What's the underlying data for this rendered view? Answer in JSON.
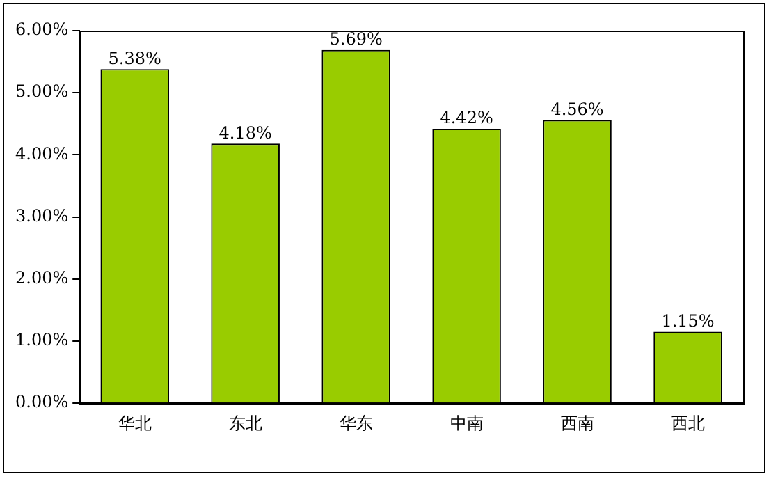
{
  "chart_data": {
    "type": "bar",
    "categories": [
      "华北",
      "东北",
      "华东",
      "中南",
      "西南",
      "西北"
    ],
    "values": [
      5.38,
      4.18,
      5.69,
      4.42,
      4.56,
      1.15
    ],
    "value_labels": [
      "5.38%",
      "4.18%",
      "5.69%",
      "4.42%",
      "4.56%",
      "1.15%"
    ],
    "color": "#99cc00",
    "ylim": [
      0,
      6
    ],
    "yticks": [
      {
        "value": 0,
        "label": "0.00%"
      },
      {
        "value": 1,
        "label": "1.00%"
      },
      {
        "value": 2,
        "label": "2.00%"
      },
      {
        "value": 3,
        "label": "3.00%"
      },
      {
        "value": 4,
        "label": "4.00%"
      },
      {
        "value": 5,
        "label": "5.00%"
      },
      {
        "value": 6,
        "label": "6.00%"
      }
    ],
    "grid": false,
    "legend": false
  }
}
